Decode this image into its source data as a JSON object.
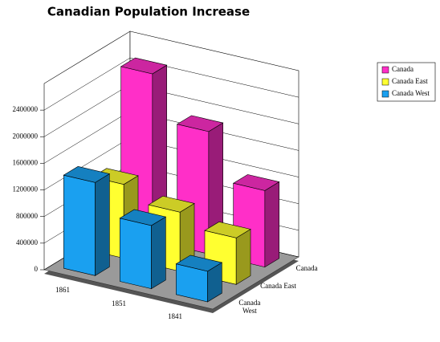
{
  "chart_data": {
    "type": "bar3d",
    "title": "Canadian Population Increase",
    "categories": [
      "1861",
      "1851",
      "1841"
    ],
    "series": [
      {
        "name": "Canada",
        "color": "#ff2fc8",
        "values": [
          2510000,
          1840000,
          1150000
        ]
      },
      {
        "name": "Canada East",
        "color": "#ffff30",
        "values": [
          1110000,
          890000,
          700000
        ]
      },
      {
        "name": "Canada West",
        "color": "#1aa0f0",
        "values": [
          1400000,
          950000,
          460000
        ]
      }
    ],
    "ylim": [
      0,
      2800000
    ],
    "yticks": [
      0,
      400000,
      800000,
      1200000,
      1600000,
      2000000,
      2400000
    ],
    "grid": true,
    "legend": "top-right"
  }
}
